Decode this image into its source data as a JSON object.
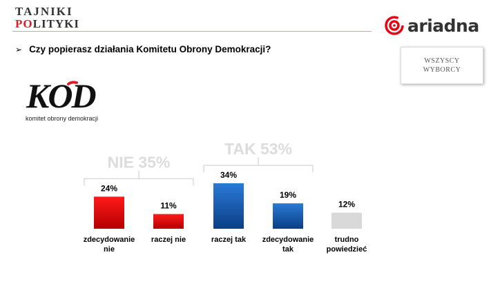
{
  "header": {
    "brand_left_line1": "TAJNIKI",
    "brand_left_line2_accent": "PO",
    "brand_left_line2_rest": "LITYKI",
    "brand_right": "ariadna"
  },
  "question": "Czy popierasz działania Komitetu Obrony Demokracji?",
  "segment": {
    "line1": "WSZYSCY",
    "line2": "WYBORCY"
  },
  "kod_logo": {
    "mark": "KOD",
    "subtitle": "komitet obrony demokracji"
  },
  "colors": {
    "red_top": "#ff1a1a",
    "red_bottom": "#b30000",
    "blue_top": "#2a7ad6",
    "blue_bottom": "#0b3e86",
    "gray": "#d9d9d9",
    "group_label": "#dcdcdc"
  },
  "chart_data": {
    "type": "bar",
    "categories": [
      [
        "zdecydowanie",
        "nie"
      ],
      [
        "raczej nie"
      ],
      [
        "raczej tak"
      ],
      [
        "zdecydowanie",
        "tak"
      ],
      [
        "trudno",
        "powiedzieć"
      ]
    ],
    "values": [
      24,
      11,
      34,
      19,
      12
    ],
    "value_labels": [
      "24%",
      "11%",
      "34%",
      "19%",
      "12%"
    ],
    "bar_colors": [
      "red",
      "red",
      "blue",
      "blue",
      "gray"
    ],
    "groups": [
      {
        "label": "NIE 35%",
        "from": 0,
        "to": 1
      },
      {
        "label": "TAK 53%",
        "from": 2,
        "to": 3
      }
    ],
    "ylim": [
      0,
      34
    ],
    "grid": false
  }
}
